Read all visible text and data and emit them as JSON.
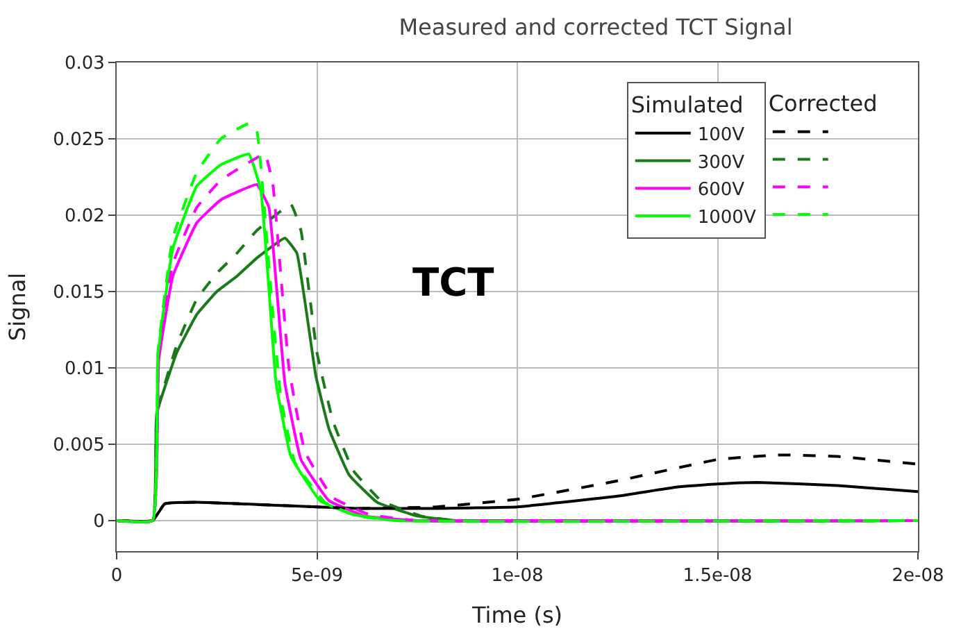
{
  "chart_data": {
    "type": "line",
    "title": "Measured and corrected TCT Signal",
    "xlabel": "Time (s)",
    "ylabel": "Signal",
    "legend_title": "Simulated",
    "annotations": [
      "TCT",
      "Corrected"
    ],
    "xlim": [
      0,
      2e-08
    ],
    "xticks": [
      0,
      {
        "value": 5e-09,
        "label": "5e-09"
      },
      {
        "value": 1e-08,
        "label": "1e-08"
      },
      {
        "value": 1.5e-08,
        "label": "1.5e-08"
      },
      {
        "value": 2e-08,
        "label": "2e-08"
      }
    ],
    "ylim": [
      -0.002,
      0.03
    ],
    "yticks": [
      0,
      0.005,
      0.01,
      0.015,
      0.02,
      0.025,
      0.03
    ],
    "grid": true,
    "legend": "top right",
    "series": [
      {
        "name": "100V",
        "color": "#000000",
        "line_style": "solid",
        "x": [
          0,
          9e-10,
          1.2e-09,
          2e-09,
          4e-09,
          6e-09,
          8e-09,
          1e-08,
          1.25e-08,
          1.4e-08,
          1.5e-08,
          1.6e-08,
          1.8e-08,
          2e-08
        ],
        "values": [
          0,
          0,
          0.0011,
          0.0012,
          0.001,
          0.0008,
          0.0008,
          0.0009,
          0.0016,
          0.0022,
          0.0024,
          0.0025,
          0.0023,
          0.0019
        ]
      },
      {
        "name": "300V",
        "color": "#1a7a1a",
        "line_style": "solid",
        "x": [
          0,
          9e-10,
          1e-09,
          1.5e-09,
          2e-09,
          2.5e-09,
          3e-09,
          3.5e-09,
          4.2e-09,
          4.5e-09,
          4.97e-09,
          5.3e-09,
          5.8e-09,
          6.5e-09,
          7.5e-09,
          8.5e-09,
          2e-08
        ],
        "values": [
          0,
          0,
          0.007,
          0.011,
          0.0135,
          0.015,
          0.016,
          0.0172,
          0.0185,
          0.0175,
          0.0095,
          0.006,
          0.003,
          0.0012,
          0.0003,
          0,
          0
        ]
      },
      {
        "name": "600V",
        "color": "#ff00ff",
        "line_style": "solid",
        "x": [
          0,
          9e-10,
          1.05e-09,
          1.4e-09,
          2e-09,
          2.6e-09,
          3.5e-09,
          3.8e-09,
          4e-09,
          4.2e-09,
          4.6e-09,
          5.3e-09,
          6.2e-09,
          7.5e-09,
          2e-08
        ],
        "values": [
          0,
          0,
          0.0105,
          0.016,
          0.0195,
          0.021,
          0.022,
          0.0205,
          0.015,
          0.009,
          0.004,
          0.0013,
          0.0003,
          0,
          0
        ]
      },
      {
        "name": "1000V",
        "color": "#00ff00",
        "line_style": "solid",
        "x": [
          0,
          9e-10,
          1.03e-09,
          1.4e-09,
          2e-09,
          2.6e-09,
          3.3e-09,
          3.6e-09,
          3.8e-09,
          3.98e-09,
          4.35e-09,
          5.08e-09,
          5.9e-09,
          7e-09,
          2e-08
        ],
        "values": [
          0,
          0,
          0.0108,
          0.0178,
          0.0219,
          0.0233,
          0.024,
          0.0216,
          0.0152,
          0.009,
          0.0042,
          0.0013,
          0.0004,
          0,
          0
        ]
      },
      {
        "color": "#000000",
        "line_style": "dashed",
        "x": [
          0,
          9e-10,
          1.2e-09,
          2e-09,
          4e-09,
          6e-09,
          8e-09,
          1e-08,
          1.25e-08,
          1.5e-08,
          1.65e-08,
          1.8e-08,
          2e-08
        ],
        "values": [
          0,
          0,
          0.0011,
          0.0012,
          0.001,
          0.0008,
          0.0009,
          0.0014,
          0.0026,
          0.004,
          0.0043,
          0.0042,
          0.0037
        ]
      },
      {
        "color": "#1a7a1a",
        "line_style": "dashed",
        "x": [
          0,
          9e-10,
          1e-09,
          1.5e-09,
          2e-09,
          2.5e-09,
          3e-09,
          3.5e-09,
          4.35e-09,
          4.6e-09,
          5e-09,
          5.4e-09,
          5.9e-09,
          6.6e-09,
          7.6e-09,
          8.5e-09,
          2e-08
        ],
        "values": [
          0,
          0,
          0.007,
          0.0115,
          0.0145,
          0.0162,
          0.0175,
          0.019,
          0.0207,
          0.019,
          0.011,
          0.0065,
          0.0033,
          0.0013,
          0.0003,
          0,
          0
        ]
      },
      {
        "color": "#ff00ff",
        "line_style": "dashed",
        "x": [
          0,
          9e-10,
          1.05e-09,
          1.4e-09,
          2e-09,
          2.6e-09,
          3.2e-09,
          3.7e-09,
          3.9e-09,
          4.1e-09,
          4.3e-09,
          4.7e-09,
          5.4e-09,
          6.3e-09,
          7.5e-09,
          2e-08
        ],
        "values": [
          0,
          0,
          0.0108,
          0.0168,
          0.0205,
          0.0223,
          0.0233,
          0.024,
          0.022,
          0.016,
          0.01,
          0.0045,
          0.0015,
          0.0004,
          0,
          0
        ]
      },
      {
        "color": "#00ff00",
        "line_style": "dashed",
        "x": [
          0,
          9e-10,
          1.03e-09,
          1.4e-09,
          2e-09,
          2.6e-09,
          3.3e-09,
          3.5e-09,
          3.7e-09,
          3.9e-09,
          4.1e-09,
          4.45e-09,
          5.2e-09,
          6e-09,
          7e-09,
          2e-08
        ],
        "values": [
          0,
          0,
          0.011,
          0.0185,
          0.0228,
          0.025,
          0.026,
          0.0255,
          0.02,
          0.0135,
          0.008,
          0.0038,
          0.0012,
          0.0003,
          0,
          0
        ]
      }
    ]
  }
}
